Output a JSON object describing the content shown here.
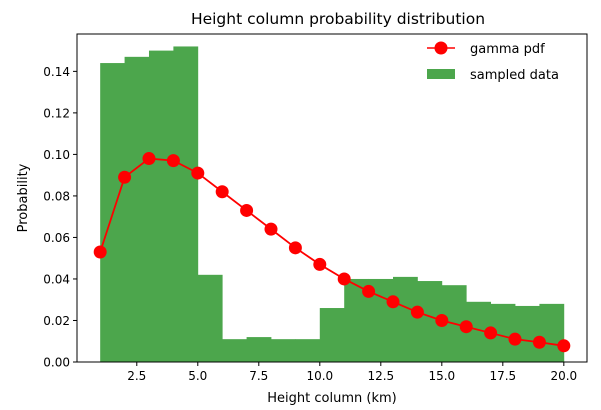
{
  "chart_data": {
    "type": "bar+line",
    "title": "Height column probability distribution",
    "xlabel": "Height column (km)",
    "ylabel": "Probability",
    "xlim": [
      0.05,
      20.95
    ],
    "ylim": [
      0,
      0.158
    ],
    "xticks": [
      2.5,
      5.0,
      7.5,
      10.0,
      12.5,
      15.0,
      17.5,
      20.0
    ],
    "xtick_labels": [
      "2.5",
      "5.0",
      "7.5",
      "10.0",
      "12.5",
      "15.0",
      "17.5",
      "20.0"
    ],
    "yticks": [
      0.0,
      0.02,
      0.04,
      0.06,
      0.08,
      0.1,
      0.12,
      0.14
    ],
    "ytick_labels": [
      "0.00",
      "0.02",
      "0.04",
      "0.06",
      "0.08",
      "0.10",
      "0.12",
      "0.14"
    ],
    "grid": false,
    "legend_position": "top-right",
    "histogram": {
      "name": "sampled data",
      "color": "#4ca64c",
      "bin_edges": [
        1,
        2,
        3,
        4,
        5,
        6,
        7,
        8,
        9,
        10,
        11,
        12,
        13,
        14,
        15,
        16,
        17,
        18,
        19,
        20
      ],
      "values": [
        0.144,
        0.147,
        0.15,
        0.152,
        0.042,
        0.011,
        0.012,
        0.011,
        0.011,
        0.026,
        0.04,
        0.04,
        0.041,
        0.039,
        0.037,
        0.029,
        0.028,
        0.027,
        0.028
      ]
    },
    "line": {
      "name": "gamma pdf",
      "color": "#ff0000",
      "x": [
        1,
        2,
        3,
        4,
        5,
        6,
        7,
        8,
        9,
        10,
        11,
        12,
        13,
        14,
        15,
        16,
        17,
        18,
        19,
        20
      ],
      "y": [
        0.053,
        0.089,
        0.098,
        0.097,
        0.091,
        0.082,
        0.073,
        0.064,
        0.055,
        0.047,
        0.04,
        0.034,
        0.029,
        0.024,
        0.02,
        0.017,
        0.014,
        0.011,
        0.0095,
        0.0078
      ]
    }
  }
}
